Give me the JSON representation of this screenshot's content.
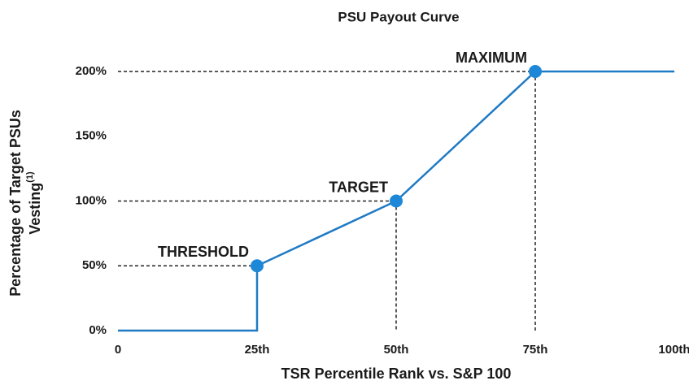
{
  "chart_data": {
    "type": "line",
    "title": "PSU Payout Curve",
    "xlabel": "TSR Percentile Rank vs. S&P 100",
    "ylabel": [
      "Percentage of Target PSUs",
      "Vesting"
    ],
    "ylabel_note": "(1)",
    "x": [
      0,
      25,
      25,
      50,
      75,
      100
    ],
    "values": [
      0,
      0,
      50,
      100,
      200,
      200
    ],
    "color": "#1f7ac4",
    "marker_color": "#1e88d8",
    "xlim": [
      0,
      100
    ],
    "xticks": [
      0,
      {
        "value": 25,
        "label": "25th"
      },
      {
        "value": 50,
        "label": "50th"
      },
      {
        "value": 75,
        "label": "75th"
      },
      {
        "value": 100,
        "label": "100th"
      }
    ],
    "ylim": [
      0,
      200
    ],
    "yticks": [
      {
        "value": 0,
        "label": "0%"
      },
      {
        "value": 50,
        "label": "50%"
      },
      {
        "value": 100,
        "label": "100%"
      },
      {
        "value": 150,
        "label": "150%"
      },
      {
        "value": 200,
        "label": "200%"
      }
    ],
    "annotations": [
      {
        "x": 25,
        "y": 50,
        "text": "THRESHOLD"
      },
      {
        "x": 50,
        "y": 100,
        "text": "TARGET"
      },
      {
        "x": 75,
        "y": 200,
        "text": "MAXIMUM"
      }
    ]
  }
}
